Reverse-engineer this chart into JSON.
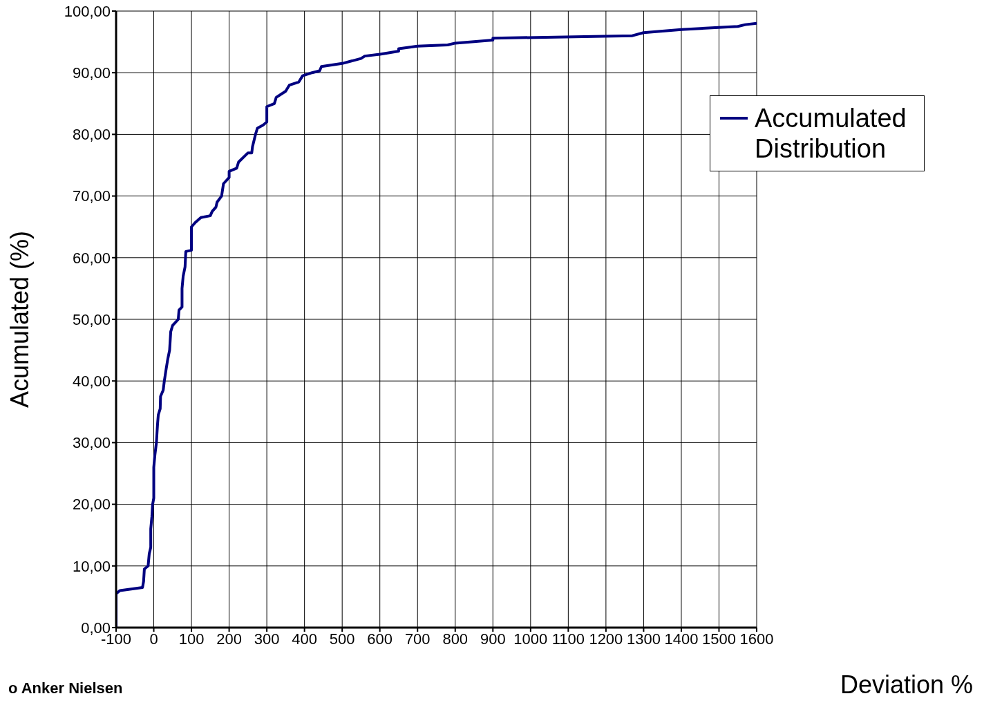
{
  "chart_data": {
    "type": "line",
    "xlabel": "Deviation %",
    "ylabel": "Acumulated (%)",
    "annotations": [
      "o Anker Nielsen"
    ],
    "xlim": [
      -100,
      1600
    ],
    "xticks": [
      -100,
      0,
      100,
      200,
      300,
      400,
      500,
      600,
      700,
      800,
      900,
      1000,
      1100,
      1200,
      1300,
      1400,
      1500,
      1600
    ],
    "ylim": [
      0,
      100
    ],
    "yticks": [
      {
        "value": 0,
        "label": "0,00"
      },
      {
        "value": 10,
        "label": "10,00"
      },
      {
        "value": 20,
        "label": "20,00"
      },
      {
        "value": 30,
        "label": "30,00"
      },
      {
        "value": 40,
        "label": "40,00"
      },
      {
        "value": 50,
        "label": "50,00"
      },
      {
        "value": 60,
        "label": "60,00"
      },
      {
        "value": 70,
        "label": "70,00"
      },
      {
        "value": 80,
        "label": "80,00"
      },
      {
        "value": 90,
        "label": "90,00"
      },
      {
        "value": 100,
        "label": "100,00"
      }
    ],
    "grid": true,
    "legend": "top right",
    "marker": "none",
    "line_style": "solid",
    "series": [
      {
        "name": "Accumulated Distribution",
        "color": "#000080",
        "x": [
          -100,
          -100,
          -90,
          -30,
          -27,
          -25,
          -15,
          -12,
          -8,
          -8,
          -5,
          -3,
          0,
          0,
          3,
          7,
          10,
          12,
          17,
          18,
          25,
          28,
          33,
          37,
          42,
          45,
          50,
          65,
          67,
          75,
          75,
          78,
          83,
          85,
          100,
          100,
          110,
          125,
          150,
          155,
          165,
          168,
          180,
          185,
          200,
          200,
          220,
          225,
          250,
          260,
          262,
          270,
          275,
          290,
          300,
          300,
          320,
          325,
          350,
          360,
          385,
          395,
          420,
          440,
          445,
          500,
          550,
          560,
          600,
          620,
          650,
          650,
          700,
          780,
          800,
          900,
          900,
          1270,
          1300,
          1400,
          1550,
          1570,
          1600
        ],
        "values": [
          0,
          5.5,
          6,
          6.5,
          7.5,
          9.5,
          10,
          12,
          13,
          16,
          18,
          20,
          21,
          26,
          28,
          30,
          33,
          34.5,
          35.5,
          37.5,
          38.5,
          40,
          42,
          43.5,
          45,
          48,
          49,
          50,
          51.5,
          52,
          55,
          57,
          58.5,
          61,
          61.2,
          65,
          65.7,
          66.5,
          66.8,
          67.5,
          68.2,
          69,
          70,
          72,
          73,
          74,
          74.5,
          75.5,
          77,
          77,
          78,
          80,
          81,
          81.5,
          82,
          84.5,
          85,
          86,
          87,
          88,
          88.5,
          89.5,
          90,
          90.3,
          91,
          91.5,
          92.3,
          92.7,
          93,
          93.2,
          93.5,
          93.9,
          94.3,
          94.5,
          94.8,
          95.3,
          95.6,
          96,
          96.5,
          97,
          97.5,
          97.8,
          98
        ]
      }
    ]
  }
}
